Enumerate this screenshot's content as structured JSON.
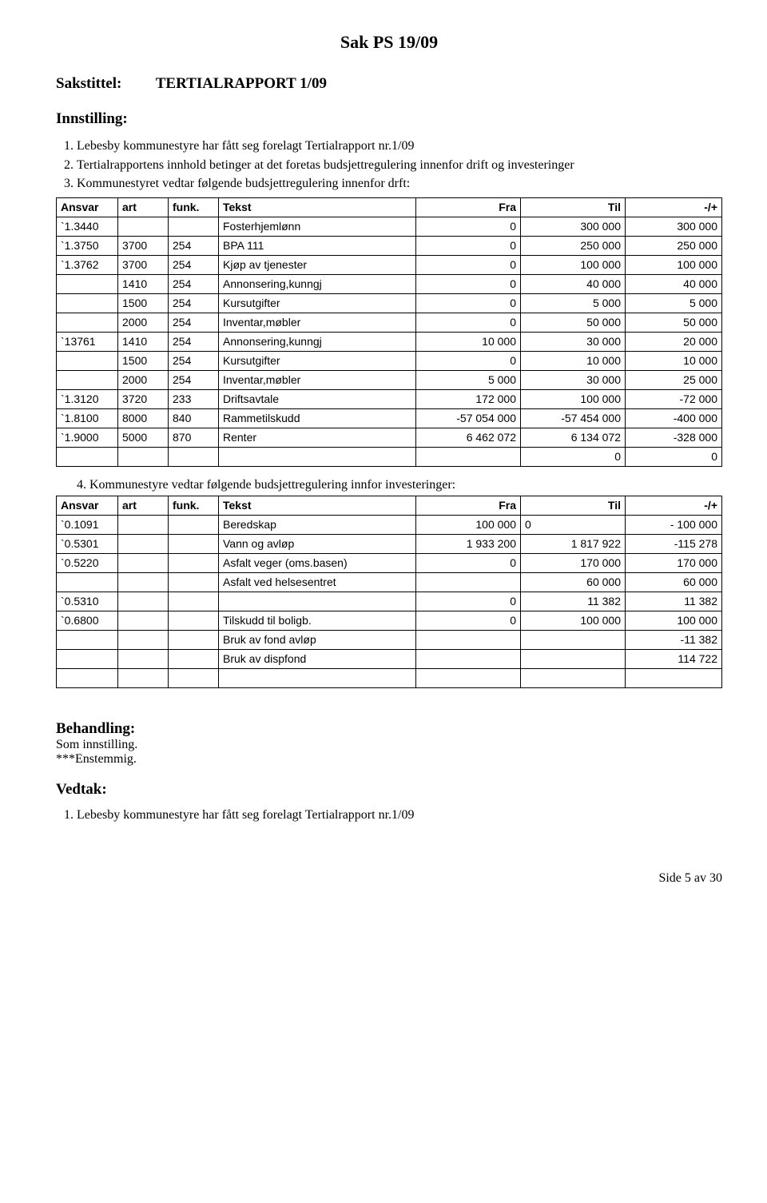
{
  "main_title": "Sak PS  19/09",
  "sakstittel_label": "Sakstittel:",
  "sakstittel_value": "TERTIALRAPPORT 1/09",
  "innstilling_label": "Innstilling:",
  "list_items": [
    "Lebesby kommunestyre har fått seg forelagt Tertialrapport nr.1/09",
    "Tertialrapportens innhold betinger at det foretas budsjettregulering innenfor drift og investeringer",
    "Kommunestyret vedtar følgende budsjettregulering innenfor drft:"
  ],
  "table_headers": {
    "ansvar": "Ansvar",
    "art": "art",
    "funk": "funk.",
    "tekst": "Tekst",
    "fra": "Fra",
    "til": "Til",
    "pm": "-/+"
  },
  "table1_rows": [
    {
      "ansvar": "`1.3440",
      "art": "",
      "funk": "",
      "tekst": "Fosterhjemlønn",
      "fra": "0",
      "til": "300 000",
      "pm": "300 000"
    },
    {
      "ansvar": "`1.3750",
      "art": "3700",
      "funk": "254",
      "tekst": "BPA 111",
      "fra": "0",
      "til": "250 000",
      "pm": "250 000"
    },
    {
      "ansvar": "`1.3762",
      "art": "3700",
      "funk": "254",
      "tekst": "Kjøp av tjenester",
      "fra": "0",
      "til": "100 000",
      "pm": "100 000"
    },
    {
      "ansvar": "",
      "art": "1410",
      "funk": "254",
      "tekst": "Annonsering,kunngj",
      "fra": "0",
      "til": "40 000",
      "pm": "40 000"
    },
    {
      "ansvar": "",
      "art": "1500",
      "funk": "254",
      "tekst": "Kursutgifter",
      "fra": "0",
      "til": "5 000",
      "pm": "5 000"
    },
    {
      "ansvar": "",
      "art": "2000",
      "funk": "254",
      "tekst": "Inventar,møbler",
      "fra": "0",
      "til": "50 000",
      "pm": "50 000"
    },
    {
      "ansvar": "`13761",
      "art": "1410",
      "funk": "254",
      "tekst": "Annonsering,kunngj",
      "fra": "10 000",
      "til": "30 000",
      "pm": "20 000"
    },
    {
      "ansvar": "",
      "art": "1500",
      "funk": "254",
      "tekst": "Kursutgifter",
      "fra": "0",
      "til": "10 000",
      "pm": "10 000"
    },
    {
      "ansvar": "",
      "art": "2000",
      "funk": "254",
      "tekst": "Inventar,møbler",
      "fra": "5 000",
      "til": "30 000",
      "pm": "25 000"
    },
    {
      "ansvar": "`1.3120",
      "art": "3720",
      "funk": "233",
      "tekst": "Driftsavtale",
      "fra": "172 000",
      "til": "100 000",
      "pm": "-72 000"
    },
    {
      "ansvar": "`1.8100",
      "art": "8000",
      "funk": "840",
      "tekst": "Rammetilskudd",
      "fra": "-57 054 000",
      "til": "-57 454 000",
      "pm": "-400 000"
    },
    {
      "ansvar": "`1.9000",
      "art": "5000",
      "funk": "870",
      "tekst": "Renter",
      "fra": "6 462 072",
      "til": "6 134 072",
      "pm": "-328 000"
    },
    {
      "ansvar": "",
      "art": "",
      "funk": "",
      "tekst": "",
      "fra": "",
      "til": "0",
      "pm": "0"
    }
  ],
  "item4_text": "4.   Kommunestyre vedtar følgende budsjettregulering innfor investeringer:",
  "table2_rows": [
    {
      "ansvar": "`0.1091",
      "art": "",
      "funk": "",
      "tekst": "Beredskap",
      "fra": "100 000",
      "til": "0",
      "til_align": "left",
      "pm": "- 100 000"
    },
    {
      "ansvar": "`0.5301",
      "art": "",
      "funk": "",
      "tekst": "Vann og avløp",
      "fra": "1 933 200",
      "til": "1 817 922",
      "pm": "-115 278"
    },
    {
      "ansvar": "`0.5220",
      "art": "",
      "funk": "",
      "tekst": "Asfalt veger (oms.basen)",
      "fra": "0",
      "til": "170 000",
      "pm": "170 000"
    },
    {
      "ansvar": "",
      "art": "",
      "funk": "",
      "tekst": "Asfalt ved helsesentret",
      "fra": "",
      "til": "60 000",
      "pm": "60 000"
    },
    {
      "ansvar": "`0.5310",
      "art": "",
      "funk": "",
      "tekst": "",
      "fra": "0",
      "til": "11 382",
      "pm": "11 382"
    },
    {
      "ansvar": "`0.6800",
      "art": "",
      "funk": "",
      "tekst": "Tilskudd til boligb.",
      "fra": "0",
      "til": "100 000",
      "pm": "100 000"
    },
    {
      "ansvar": "",
      "art": "",
      "funk": "",
      "tekst": "Bruk av fond avløp",
      "fra": "",
      "til": "",
      "pm": "-11 382"
    },
    {
      "ansvar": "",
      "art": "",
      "funk": "",
      "tekst": "Bruk av dispfond",
      "fra": "",
      "til": "",
      "pm": "114 722"
    },
    {
      "ansvar": "",
      "art": "",
      "funk": "",
      "tekst": "",
      "fra": "",
      "til": "",
      "pm": ""
    }
  ],
  "behandling_label": "Behandling:",
  "behandling_line1": "Som innstilling.",
  "behandling_line2": "***Enstemmig.",
  "vedtak_label": "Vedtak:",
  "vedtak_items": [
    "Lebesby kommunestyre har fått seg forelagt Tertialrapport nr.1/09"
  ],
  "footer": "Side 5 av 30"
}
